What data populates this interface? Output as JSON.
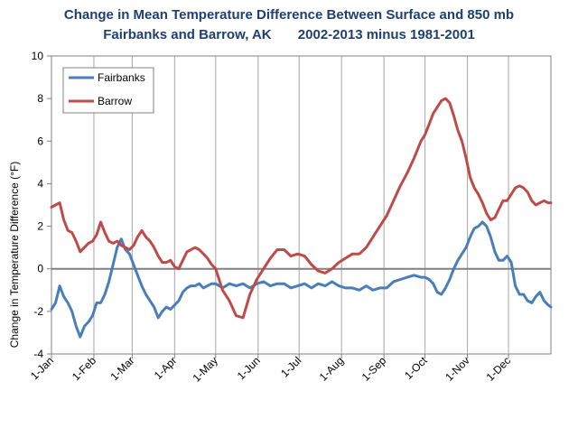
{
  "chart_data": {
    "type": "line",
    "title_line1": "Change in Mean Temperature Difference Between Surface and 850 mb",
    "title_line2": "Fairbanks and Barrow, AK       2002-2013 minus 1981-2001",
    "ylabel": "Change in Temperature Difference (°F)",
    "xlabel": "",
    "ylim": [
      -4,
      10
    ],
    "yticks": [
      -4,
      -2,
      0,
      2,
      4,
      6,
      8,
      10
    ],
    "xlim": [
      0,
      365
    ],
    "xtick_positions": [
      0,
      31,
      59,
      90,
      120,
      151,
      181,
      212,
      243,
      273,
      304,
      334
    ],
    "xtick_labels": [
      "1-Jan",
      "1-Feb",
      "1-Mar",
      "1-Apr",
      "1-May",
      "1-Jun",
      "1-Jul",
      "1-Aug",
      "1-Sep",
      "1-Oct",
      "1-Nov",
      "1-Dec"
    ],
    "zero_line": 0,
    "legend_position": "top-left",
    "series": [
      {
        "name": "Fairbanks",
        "color": "#4a7ebb",
        "x": [
          0,
          3,
          6,
          9,
          12,
          15,
          18,
          21,
          24,
          27,
          30,
          33,
          36,
          39,
          42,
          45,
          48,
          51,
          54,
          57,
          60,
          63,
          66,
          69,
          72,
          75,
          78,
          81,
          84,
          87,
          90,
          93,
          96,
          99,
          102,
          105,
          108,
          111,
          114,
          117,
          120,
          125,
          130,
          135,
          140,
          145,
          150,
          155,
          160,
          165,
          170,
          175,
          180,
          185,
          190,
          195,
          200,
          205,
          210,
          215,
          220,
          225,
          230,
          235,
          240,
          245,
          250,
          255,
          260,
          265,
          270,
          273,
          276,
          279,
          282,
          285,
          288,
          291,
          294,
          297,
          300,
          303,
          306,
          309,
          312,
          315,
          318,
          321,
          324,
          327,
          330,
          333,
          336,
          339,
          342,
          345,
          348,
          351,
          354,
          357,
          360,
          363,
          365
        ],
        "values": [
          -1.9,
          -1.6,
          -0.8,
          -1.3,
          -1.6,
          -2.0,
          -2.7,
          -3.2,
          -2.7,
          -2.5,
          -2.2,
          -1.6,
          -1.6,
          -1.2,
          -0.6,
          0.2,
          1.0,
          1.4,
          0.9,
          0.7,
          0.2,
          -0.3,
          -0.8,
          -1.2,
          -1.5,
          -1.8,
          -2.3,
          -2.0,
          -1.8,
          -1.9,
          -1.7,
          -1.5,
          -1.1,
          -0.9,
          -0.8,
          -0.8,
          -0.7,
          -0.9,
          -0.8,
          -0.7,
          -0.7,
          -0.9,
          -0.7,
          -0.8,
          -0.7,
          -0.9,
          -0.7,
          -0.6,
          -0.8,
          -0.7,
          -0.7,
          -0.9,
          -0.8,
          -0.7,
          -0.9,
          -0.7,
          -0.8,
          -0.6,
          -0.8,
          -0.9,
          -0.9,
          -1.0,
          -0.8,
          -1.0,
          -0.9,
          -0.9,
          -0.6,
          -0.5,
          -0.4,
          -0.3,
          -0.4,
          -0.4,
          -0.5,
          -0.7,
          -1.1,
          -1.2,
          -0.9,
          -0.5,
          0.0,
          0.4,
          0.7,
          1.0,
          1.5,
          1.9,
          2.0,
          2.2,
          2.0,
          1.5,
          0.8,
          0.4,
          0.4,
          0.6,
          0.3,
          -0.8,
          -1.2,
          -1.2,
          -1.5,
          -1.6,
          -1.3,
          -1.1,
          -1.5,
          -1.7,
          -1.8
        ]
      },
      {
        "name": "Barrow",
        "color": "#be4b48",
        "x": [
          0,
          3,
          6,
          9,
          12,
          15,
          18,
          21,
          24,
          27,
          30,
          33,
          36,
          39,
          42,
          45,
          48,
          51,
          54,
          57,
          60,
          63,
          66,
          69,
          72,
          75,
          78,
          81,
          84,
          87,
          90,
          93,
          96,
          99,
          102,
          105,
          108,
          111,
          114,
          117,
          120,
          125,
          130,
          135,
          140,
          145,
          150,
          155,
          160,
          165,
          170,
          175,
          180,
          185,
          190,
          195,
          200,
          205,
          210,
          215,
          220,
          225,
          230,
          235,
          240,
          245,
          250,
          255,
          260,
          265,
          270,
          273,
          276,
          279,
          282,
          285,
          288,
          291,
          294,
          297,
          300,
          303,
          306,
          309,
          312,
          315,
          318,
          321,
          324,
          327,
          330,
          333,
          336,
          339,
          342,
          345,
          348,
          351,
          354,
          357,
          360,
          363,
          365
        ],
        "values": [
          2.9,
          3.0,
          3.1,
          2.3,
          1.8,
          1.7,
          1.3,
          0.8,
          1.0,
          1.2,
          1.3,
          1.6,
          2.2,
          1.7,
          1.3,
          1.2,
          1.3,
          1.1,
          1.0,
          0.9,
          1.1,
          1.5,
          1.8,
          1.5,
          1.3,
          1.0,
          0.6,
          0.3,
          0.3,
          0.4,
          0.1,
          0.0,
          0.4,
          0.8,
          0.9,
          1.0,
          0.9,
          0.7,
          0.5,
          0.2,
          0.0,
          -1.0,
          -1.5,
          -2.2,
          -2.3,
          -1.2,
          -0.5,
          0.0,
          0.5,
          0.9,
          0.9,
          0.6,
          0.7,
          0.6,
          0.2,
          -0.1,
          -0.2,
          0.0,
          0.3,
          0.5,
          0.7,
          0.7,
          1.0,
          1.5,
          2.0,
          2.5,
          3.2,
          3.9,
          4.5,
          5.2,
          6.0,
          6.3,
          6.8,
          7.3,
          7.6,
          7.9,
          8.0,
          7.8,
          7.2,
          6.5,
          6.0,
          5.2,
          4.3,
          3.8,
          3.5,
          3.1,
          2.6,
          2.3,
          2.4,
          2.8,
          3.2,
          3.2,
          3.5,
          3.8,
          3.9,
          3.8,
          3.6,
          3.2,
          3.0,
          3.1,
          3.2,
          3.1,
          3.1
        ]
      }
    ]
  }
}
